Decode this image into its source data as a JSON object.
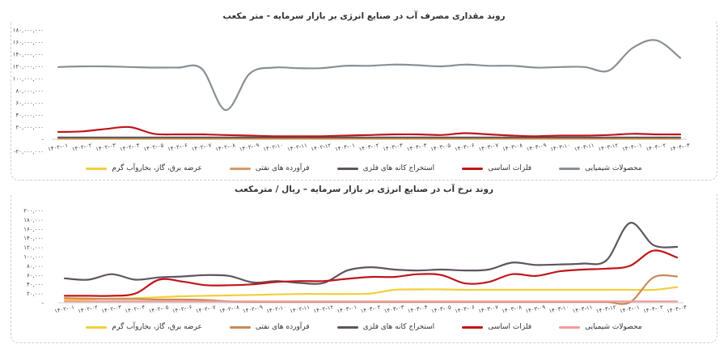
{
  "months": [
    "۱۴۰۲-۰۱",
    "۱۴۰۲-۰۲",
    "۱۴۰۲-۰۳",
    "۱۴۰۲-۰۴",
    "۱۴۰۲-۰۵",
    "۱۴۰۲-۰۶",
    "۱۴۰۲-۰۷",
    "۱۴۰۲-۰۸",
    "۱۴۰۲-۰۹",
    "۱۴۰۲-۱۰",
    "۱۴۰۲-۱۱",
    "۱۴۰۲-۱۲",
    "۱۴۰۳-۰۱",
    "۱۴۰۳-۰۲",
    "۱۴۰۳-۰۳",
    "۱۴۰۳-۰۴",
    "۱۴۰۳-۰۵",
    "۱۴۰۳-۰۶",
    "۱۴۰۳-۰۷",
    "۱۴۰۳-۰۸",
    "۱۴۰۳-۰۹",
    "۱۴۰۳-۱۰",
    "۱۴۰۳-۱۱",
    "۱۴۰۳-۱۲",
    "۱۴۰۴-۰۱",
    "۱۴۰۴-۰۲",
    "۱۴۰۴-۰۳"
  ],
  "series_names": [
    "محصولات شیمیایی",
    "فلزات اساسی",
    "استخراج کانه های فلزی",
    "فرآورده های نفتی",
    "عرضه برق، گاز، بخاروآب گرم"
  ],
  "colors": [
    "#8a9094",
    "#c0161b",
    "#5e5560",
    "#d49a6a",
    "#f3cf3a"
  ],
  "colors_chart2": [
    "#f29a9a",
    "#c0161b",
    "#5e5560",
    "#c98a58",
    "#f3cf3a"
  ],
  "chart_data": [
    {
      "type": "line",
      "title": "روند مقداری مصرف آب در صنایع انرژی بر بازار سرمایه - متر مکعب",
      "ylim": [
        -20000000,
        180000000
      ],
      "yticks": [
        -20000000,
        0,
        20000000,
        40000000,
        60000000,
        80000000,
        100000000,
        120000000,
        140000000,
        160000000,
        180000000
      ],
      "ytick_labels": [
        "-۲۰,۰۰۰,۰۰۰",
        "-",
        "۲۰,۰۰۰,۰۰۰",
        "۴۰,۰۰۰,۰۰۰",
        "۶۰,۰۰۰,۰۰۰",
        "۸۰,۰۰۰,۰۰۰",
        "۱۰۰,۰۰۰,۰۰۰",
        "۱۲۰,۰۰۰,۰۰۰",
        "۱۴۰,۰۰۰,۰۰۰",
        "۱۶۰,۰۰۰,۰۰۰",
        "۱۸۰,۰۰۰,۰۰۰"
      ],
      "grid": false,
      "legend": "bottom",
      "series": [
        {
          "name": "محصولات شیمیایی",
          "values": [
            119000000,
            120000000,
            120000000,
            119000000,
            118000000,
            118000000,
            116000000,
            48000000,
            108000000,
            118000000,
            117000000,
            117000000,
            121000000,
            121000000,
            123000000,
            122000000,
            120000000,
            123000000,
            121000000,
            121000000,
            118000000,
            119000000,
            119000000,
            113000000,
            150000000,
            163000000,
            134000000
          ]
        },
        {
          "name": "فلزات اساسی",
          "values": [
            12000000,
            13000000,
            17000000,
            20000000,
            9000000,
            8000000,
            8000000,
            7000000,
            6000000,
            5000000,
            5000000,
            5000000,
            6000000,
            7000000,
            8000000,
            8000000,
            7000000,
            10000000,
            8000000,
            6000000,
            5000000,
            6000000,
            6000000,
            7000000,
            9000000,
            8000000,
            8000000
          ]
        },
        {
          "name": "استخراج کانه های فلزی",
          "values": [
            3000000,
            3000000,
            3000000,
            3000000,
            3000000,
            3000000,
            3000000,
            3000000,
            3000000,
            3000000,
            3000000,
            3000000,
            3000000,
            3000000,
            3000000,
            3000000,
            3000000,
            3000000,
            3000000,
            3000000,
            3000000,
            3000000,
            3000000,
            3000000,
            3000000,
            3000000,
            3000000
          ]
        },
        {
          "name": "فرآورده های نفتی",
          "values": [
            1000000,
            1000000,
            1000000,
            1000000,
            1000000,
            1000000,
            1000000,
            1000000,
            1000000,
            1000000,
            1000000,
            1000000,
            1000000,
            1000000,
            1000000,
            1000000,
            1000000,
            1000000,
            1000000,
            1000000,
            1000000,
            1000000,
            1000000,
            1000000,
            1000000,
            1000000,
            1000000
          ]
        },
        {
          "name": "عرضه برق، گاز، بخاروآب گرم",
          "values": [
            500000,
            500000,
            500000,
            500000,
            500000,
            500000,
            500000,
            500000,
            500000,
            500000,
            500000,
            500000,
            500000,
            500000,
            500000,
            500000,
            500000,
            500000,
            500000,
            500000,
            500000,
            500000,
            500000,
            500000,
            500000,
            500000,
            500000
          ]
        }
      ]
    },
    {
      "type": "line",
      "title": "روند نرخ آب در صنایع انرژی بر بازار سرمایه – ریال / مترمکعب",
      "ylim": [
        0,
        200000
      ],
      "yticks": [
        0,
        20000,
        40000,
        60000,
        80000,
        100000,
        120000,
        140000,
        160000,
        180000,
        200000
      ],
      "ytick_labels": [
        "-",
        "۲۰,۰۰۰",
        "۴۰,۰۰۰",
        "۶۰,۰۰۰",
        "۸۰,۰۰۰",
        "۱۰۰,۰۰۰",
        "۱۲۰,۰۰۰",
        "۱۴۰,۰۰۰",
        "۱۶۰,۰۰۰",
        "۱۸۰,۰۰۰",
        "۲۰۰,۰۰۰"
      ],
      "grid": false,
      "legend": "bottom",
      "series": [
        {
          "name": "محصولات شیمیایی",
          "values": [
            3000,
            3000,
            3000,
            3000,
            3000,
            3000,
            3000,
            3000,
            3000,
            3000,
            3000,
            3000,
            3000,
            3000,
            3000,
            3000,
            3000,
            3000,
            3000,
            3000,
            3000,
            3000,
            3000,
            3000,
            3000,
            3000,
            3000
          ]
        },
        {
          "name": "فلزات اساسی",
          "values": [
            15000,
            15000,
            15000,
            20000,
            50000,
            46000,
            38000,
            38000,
            40000,
            45000,
            47000,
            47000,
            52000,
            56000,
            56000,
            62000,
            60000,
            42000,
            45000,
            62000,
            58000,
            68000,
            72000,
            74000,
            80000,
            113000,
            98000
          ]
        },
        {
          "name": "استخراج کانه های فلزی",
          "values": [
            53000,
            50000,
            62000,
            50000,
            55000,
            57000,
            60000,
            58000,
            44000,
            47000,
            43000,
            43000,
            70000,
            77000,
            72000,
            70000,
            72000,
            70000,
            72000,
            87000,
            82000,
            83000,
            85000,
            92000,
            173000,
            125000,
            121000
          ]
        },
        {
          "name": "فرآورده های نفتی",
          "values": [
            10000,
            9000,
            8000,
            8000,
            7000,
            7000,
            6000,
            3000,
            2000,
            2000,
            2000,
            2000,
            2000,
            2000,
            2000,
            2000,
            2000,
            2000,
            2000,
            2000,
            2000,
            2000,
            2000,
            2000,
            1000,
            55000,
            57000
          ]
        },
        {
          "name": "عرضه برق، گاز، بخاروآب گرم",
          "values": [
            6000,
            7000,
            9000,
            10000,
            12000,
            14000,
            15000,
            16000,
            17000,
            18000,
            19000,
            19000,
            19000,
            20000,
            28000,
            29000,
            29000,
            28000,
            28000,
            28000,
            28000,
            28000,
            28000,
            28000,
            28000,
            28000,
            34000
          ]
        }
      ]
    }
  ]
}
